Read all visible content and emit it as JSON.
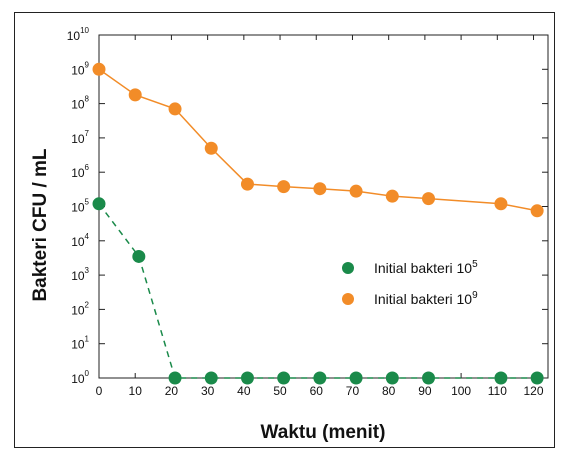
{
  "chart_data": {
    "type": "line",
    "xlabel": "Waktu (menit)",
    "ylabel": "Bakteri CFU / mL",
    "xlim": [
      0,
      120
    ],
    "ylim_log10": [
      0,
      10
    ],
    "yscale": "log",
    "x_ticks": [
      0,
      10,
      20,
      30,
      40,
      50,
      60,
      70,
      80,
      90,
      100,
      110,
      120
    ],
    "y_ticks": [
      {
        "base": "10",
        "exp": "10"
      },
      {
        "base": "10",
        "exp": "9"
      },
      {
        "base": "10",
        "exp": "8"
      },
      {
        "base": "10",
        "exp": "7"
      },
      {
        "base": "10",
        "exp": "6"
      },
      {
        "base": "10",
        "exp": "5"
      },
      {
        "base": "10",
        "exp": "4"
      },
      {
        "base": "10",
        "exp": "3"
      },
      {
        "base": "10",
        "exp": "2"
      },
      {
        "base": "10",
        "exp": "1"
      },
      {
        "base": "10",
        "exp": "0"
      }
    ],
    "series": [
      {
        "name": "Initial bakteri 10^9",
        "color": "#f28c28",
        "x": [
          0,
          10,
          21,
          31,
          41,
          51,
          61,
          71,
          81,
          91,
          111,
          121
        ],
        "y": [
          1000000000,
          180000000,
          70000000,
          5000000,
          450000,
          380000,
          330000,
          280000,
          200000,
          170000,
          120000,
          75000
        ]
      },
      {
        "name": "Initial bakteri 10^5",
        "color": "#1a8a4a",
        "x": [
          0,
          11,
          21,
          31,
          41,
          51,
          61,
          71,
          81,
          91,
          111,
          121
        ],
        "y": [
          120000,
          3500,
          1,
          1,
          1,
          1,
          1,
          1,
          1,
          1,
          1,
          1
        ]
      }
    ],
    "legend": [
      {
        "label": "Initial bakteri 10",
        "sup": "5",
        "color": "#1a8a4a"
      },
      {
        "label": "Initial bakteri 10",
        "sup": "9",
        "color": "#f28c28"
      }
    ],
    "legend_placement": "center-right",
    "grid": false
  }
}
